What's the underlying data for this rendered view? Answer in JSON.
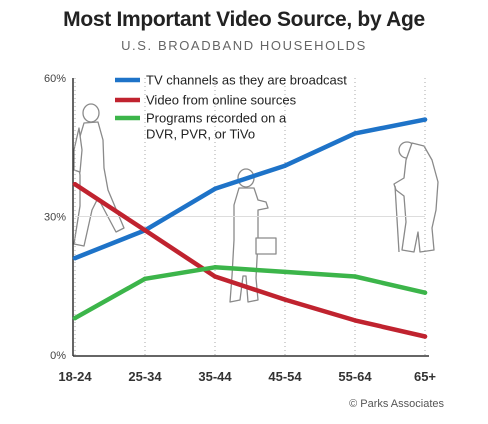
{
  "chart_data": {
    "type": "line",
    "title": "Most Important Video Source, by Age",
    "subtitle": "U.S. BROADBAND HOUSEHOLDS",
    "credit": "© Parks Associates",
    "categories": [
      "18-24",
      "25-34",
      "35-44",
      "45-54",
      "55-64",
      "65+"
    ],
    "ytick_labels": [
      "0%",
      "30%",
      "60%"
    ],
    "ylim": [
      0,
      60
    ],
    "series": [
      {
        "name": "TV channels as they are broadcast",
        "color": "#1e73c8",
        "values": [
          21,
          27,
          36,
          41,
          48,
          51
        ]
      },
      {
        "name": "Video from online sources",
        "color": "#c0232f",
        "values": [
          37,
          27,
          17,
          12,
          7.5,
          4
        ]
      },
      {
        "name": "Programs recorded on a DVR, PVR, or TiVo",
        "color": "#3cb54a",
        "values": [
          8,
          16.5,
          19,
          18,
          17,
          13.5
        ]
      }
    ],
    "legend_lines": [
      [
        "TV channels as they are broadcast"
      ],
      [
        "Video from online sources"
      ],
      [
        "Programs recorded on a",
        "DVR, PVR, or TiVo"
      ]
    ],
    "grid": "dotted vertical lines at each category",
    "legend_position": "top-center"
  }
}
